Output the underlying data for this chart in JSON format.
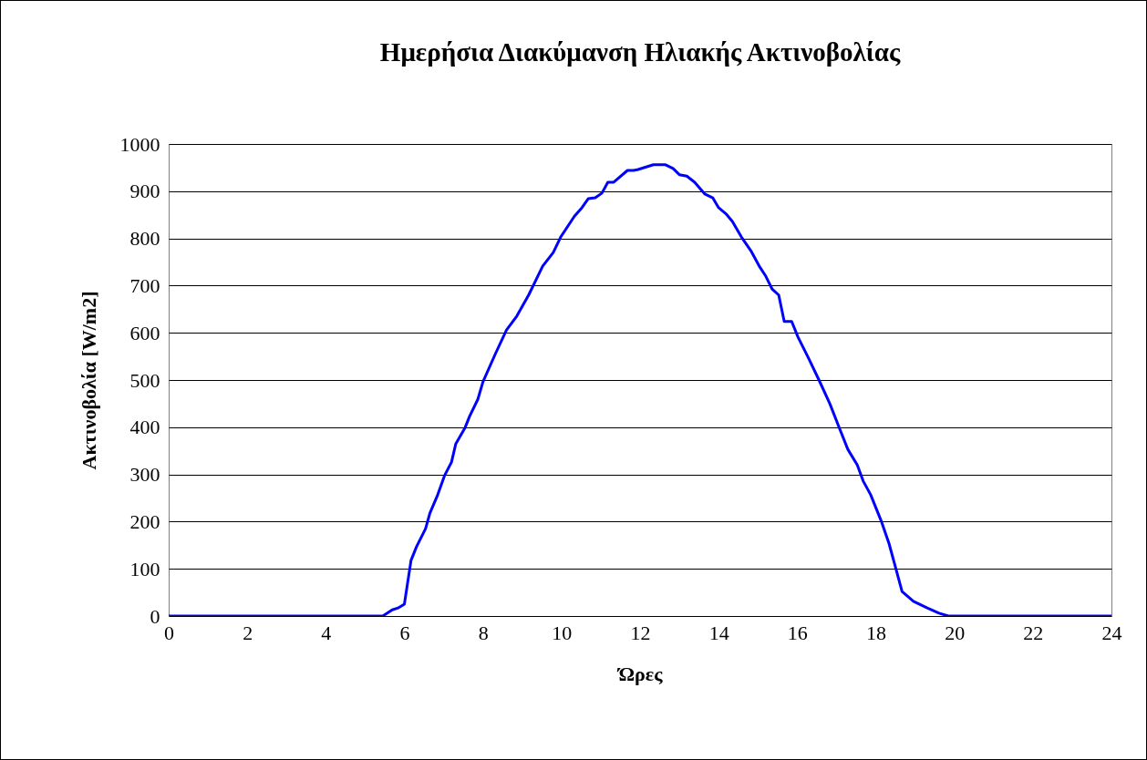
{
  "chart_data": {
    "type": "line",
    "title": "Ημερήσια Διακύμανση Ηλιακής Ακτινοβολίας",
    "xlabel": "Ώρες",
    "ylabel": "Ακτινοβολία [W/m2]",
    "xlim": [
      0,
      24
    ],
    "xticks": [
      0,
      2,
      4,
      6,
      8,
      10,
      12,
      14,
      16,
      18,
      20,
      22,
      24
    ],
    "ylim": [
      0,
      1000
    ],
    "yticks": [
      0,
      100,
      200,
      300,
      400,
      500,
      600,
      700,
      800,
      900,
      1000
    ],
    "grid": "y",
    "marker": "none",
    "line_style": "solid",
    "series": [
      {
        "color": "#0000ff",
        "x": [
          0,
          5.45,
          5.69,
          5.84,
          6.0,
          6.17,
          6.31,
          6.54,
          6.65,
          6.85,
          7.02,
          7.2,
          7.31,
          7.54,
          7.66,
          7.87,
          8.0,
          8.32,
          8.6,
          8.86,
          9.17,
          9.52,
          9.79,
          9.98,
          10.33,
          10.52,
          10.68,
          10.86,
          11.03,
          11.18,
          11.33,
          11.68,
          11.84,
          11.95,
          12.34,
          12.65,
          12.84,
          13.0,
          13.19,
          13.39,
          13.65,
          13.85,
          14.0,
          14.2,
          14.35,
          14.58,
          14.82,
          15.05,
          15.2,
          15.36,
          15.53,
          15.67,
          15.86,
          16.02,
          16.29,
          16.56,
          16.83,
          17.06,
          17.29,
          17.53,
          17.68,
          17.87,
          18.15,
          18.34,
          18.53,
          18.67,
          18.96,
          19.31,
          19.61,
          19.85,
          24
        ],
        "values": [
          0,
          0,
          13,
          17,
          25,
          118,
          147,
          185,
          218,
          257,
          297,
          326,
          365,
          398,
          423,
          459,
          496,
          556,
          606,
          635,
          681,
          741,
          770,
          803,
          847,
          865,
          884,
          886,
          896,
          919,
          919,
          944,
          944,
          946,
          956,
          956,
          948,
          935,
          932,
          919,
          894,
          886,
          865,
          851,
          836,
          803,
          774,
          739,
          720,
          693,
          680,
          624,
          624,
          591,
          546,
          499,
          450,
          401,
          353,
          320,
          286,
          257,
          199,
          153,
          95,
          52,
          31,
          17,
          6,
          0,
          0
        ]
      }
    ]
  }
}
